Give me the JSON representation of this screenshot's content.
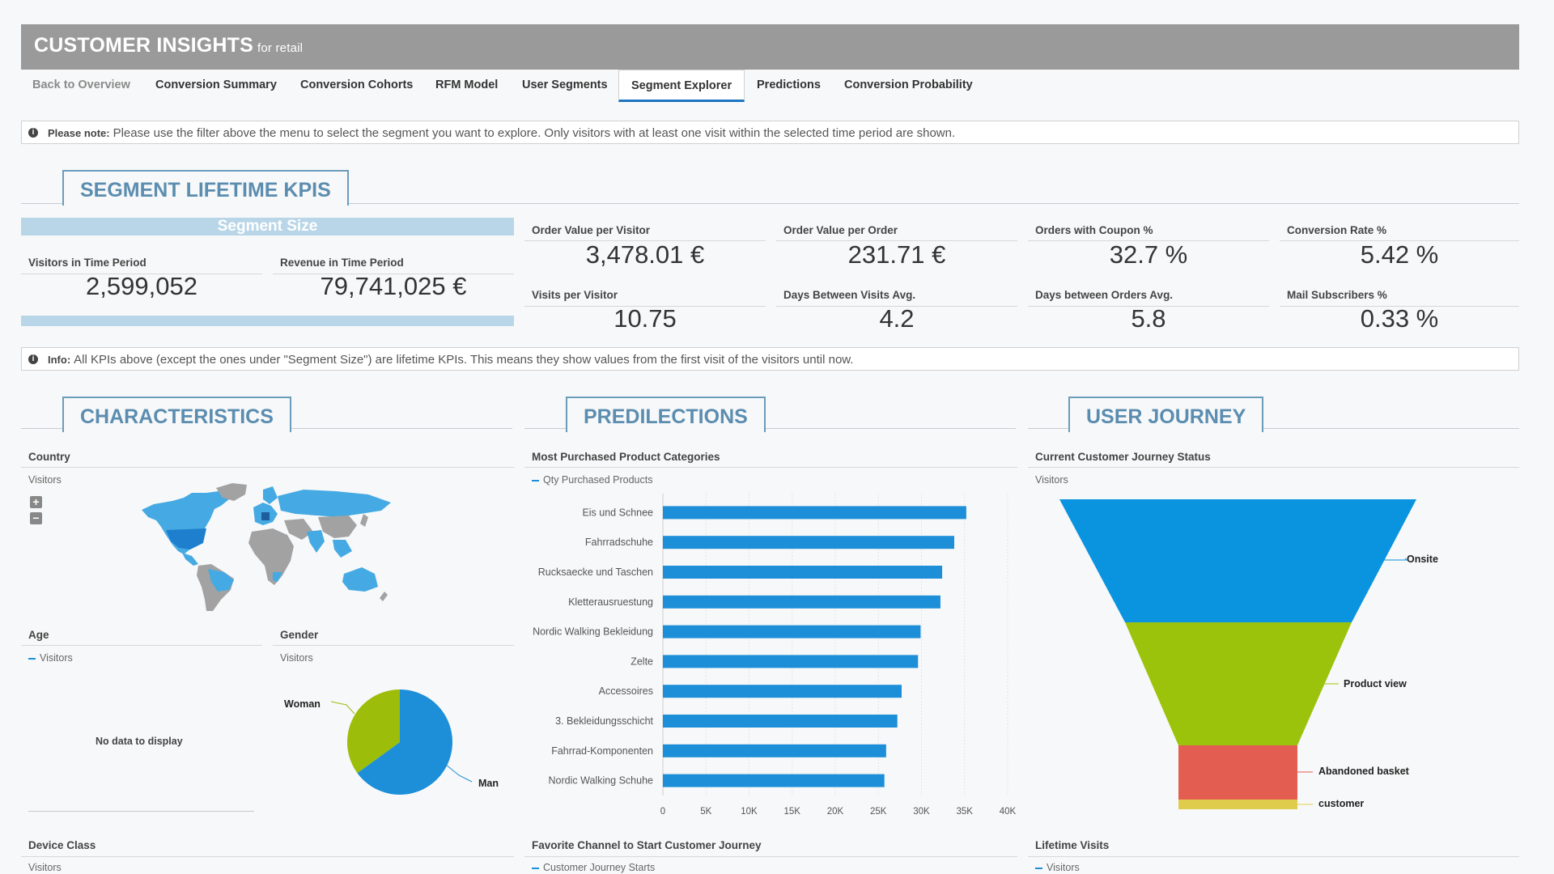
{
  "header": {
    "title": "CUSTOMER INSIGHTS",
    "subtitle": "for retail"
  },
  "nav": [
    {
      "label": "Back to Overview",
      "state": "muted"
    },
    {
      "label": "Conversion Summary",
      "state": ""
    },
    {
      "label": "Conversion Cohorts",
      "state": ""
    },
    {
      "label": "RFM Model",
      "state": ""
    },
    {
      "label": "User Segments",
      "state": ""
    },
    {
      "label": "Segment Explorer",
      "state": "active"
    },
    {
      "label": "Predictions",
      "state": ""
    },
    {
      "label": "Conversion Probability",
      "state": ""
    }
  ],
  "notes": {
    "please_note_label": "Please note:",
    "please_note_text": "Please use the filter above the menu to select the segment you want to explore. Only visitors with at least one visit within the selected time period are shown.",
    "info_label": "Info:",
    "info_text": "All KPIs above (except the ones under \"Segment Size\") are lifetime KPIs. This means they show values from the first visit of the visitors until now."
  },
  "sections": {
    "kpis": "SEGMENT LIFETIME KPIS",
    "characteristics": "CHARACTERISTICS",
    "predilections": "PREDILECTIONS",
    "journey": "USER JOURNEY"
  },
  "segment_size": {
    "title": "Segment Size",
    "visitors_label": "Visitors in Time Period",
    "visitors_value": "2,599,052",
    "revenue_label": "Revenue in Time Period",
    "revenue_value": "79,741,025 €"
  },
  "kpis": [
    {
      "label": "Order Value per Visitor",
      "value": "3,478.01 €"
    },
    {
      "label": "Order Value per Order",
      "value": "231.71 €"
    },
    {
      "label": "Orders with Coupon %",
      "value": "32.7 %"
    },
    {
      "label": "Conversion Rate %",
      "value": "5.42 %"
    },
    {
      "label": "Visits per Visitor",
      "value": "10.75"
    },
    {
      "label": "Days Between Visits Avg.",
      "value": "4.2"
    },
    {
      "label": "Days between Orders Avg.",
      "value": "5.8"
    },
    {
      "label": "Mail Subscribers %",
      "value": "0.33 %"
    }
  ],
  "country": {
    "title": "Country",
    "sub": "Visitors",
    "zoom_in": "+",
    "zoom_out": "−"
  },
  "age": {
    "title": "Age",
    "legend": "Visitors",
    "empty": "No data to display"
  },
  "gender": {
    "title": "Gender",
    "sub": "Visitors",
    "slices": [
      {
        "label": "Man",
        "value": 65,
        "color": "#1d8fd8"
      },
      {
        "label": "Woman",
        "value": 35,
        "color": "#9cbd0a"
      }
    ]
  },
  "chart_data": {
    "type": "bar",
    "title": "Most Purchased Product Categories",
    "legend": "Qty Purchased Products",
    "categories": [
      "Eis und Schnee",
      "Fahrradschuhe",
      "Rucksaecke und Taschen",
      "Kletterausruestung",
      "Nordic Walking Bekleidung",
      "Zelte",
      "Accessoires",
      "3. Bekleidungsschicht",
      "Fahrrad-Komponenten",
      "Nordic Walking Schuhe"
    ],
    "values": [
      35200,
      33800,
      32400,
      32200,
      29900,
      29600,
      27700,
      27200,
      25900,
      25700
    ],
    "xlim": [
      0,
      40000
    ],
    "ticks": [
      "0",
      "5K",
      "10K",
      "15K",
      "20K",
      "25K",
      "30K",
      "35K",
      "40K"
    ],
    "color": "#1d8fd8"
  },
  "journey": {
    "title": "Current Customer Journey Status",
    "sub": "Visitors",
    "stages": [
      {
        "label": "Onsite",
        "color": "#0a93df"
      },
      {
        "label": "Product view",
        "color": "#9cc30b"
      },
      {
        "label": "Abandoned basket",
        "color": "#e35d50"
      },
      {
        "label": "customer",
        "color": "#e0cc4c"
      }
    ]
  },
  "bottom": {
    "device_title": "Device Class",
    "device_sub": "Visitors",
    "channel_title": "Favorite Channel to Start Customer Journey",
    "channel_sub": "Customer Journey Starts",
    "visits_title": "Lifetime Visits",
    "visits_sub": "Visitors"
  }
}
